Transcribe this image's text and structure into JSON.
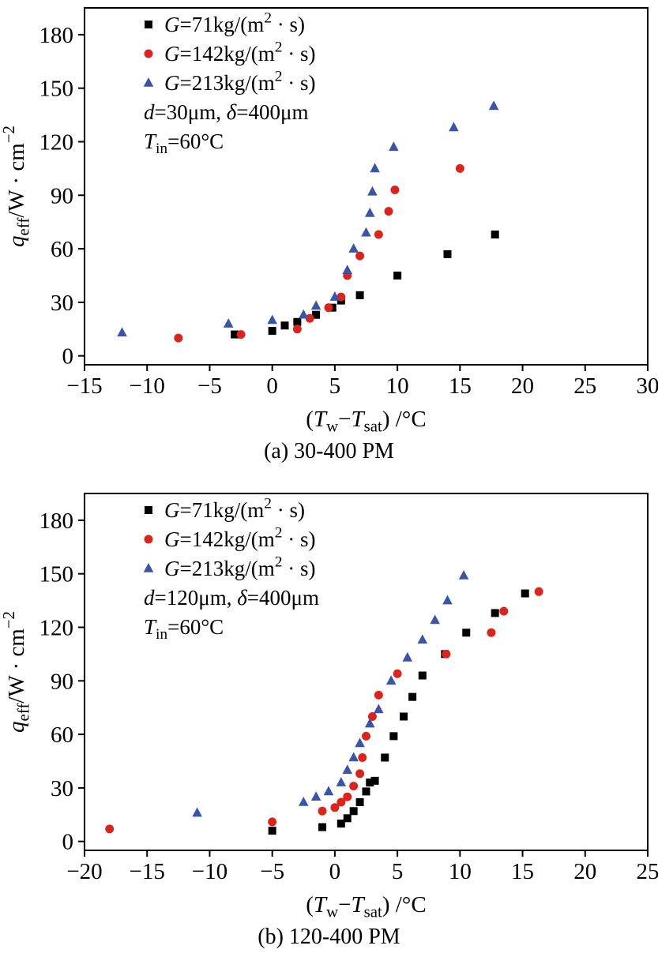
{
  "figure": {
    "description": "Two scatter plots of effective heat flux versus wall superheat for three mass fluxes",
    "accent_colors": {
      "black": "#000000",
      "red": "#d9251d",
      "blue": "#3a55a5"
    }
  },
  "chart_data": [
    {
      "id": "a",
      "type": "scatter",
      "caption": "(a) 30-400 PM",
      "xlim": [
        -15,
        30
      ],
      "ylim": [
        -5,
        195
      ],
      "xticks": [
        -15,
        -10,
        -5,
        0,
        5,
        10,
        15,
        20,
        25,
        30
      ],
      "yticks": [
        0,
        30,
        60,
        90,
        120,
        150,
        180
      ],
      "xlabel_text": "(Tw−Tsat) /°C",
      "ylabel_text": "qeff/W · cm−2",
      "xlabel_parts": [
        {
          "t": "("
        },
        {
          "t": "T",
          "i": true
        },
        {
          "t": "w",
          "sub": true
        },
        {
          "t": "−"
        },
        {
          "t": "T",
          "i": true
        },
        {
          "t": "sat",
          "sub": true
        },
        {
          "t": ") /°C"
        }
      ],
      "ylabel_parts": [
        {
          "t": "q",
          "i": true
        },
        {
          "t": "eff",
          "sub": true
        },
        {
          "t": "/W · cm"
        },
        {
          "t": "−2",
          "sup": true
        }
      ],
      "annotations": [
        {
          "text": "d=30μm, δ=400μm",
          "parts": [
            {
              "t": "d",
              "i": true
            },
            {
              "t": "=30μm, "
            },
            {
              "t": "δ",
              "i": true
            },
            {
              "t": "=400μm"
            }
          ]
        },
        {
          "text": "Tin=60°C",
          "parts": [
            {
              "t": "T",
              "i": true
            },
            {
              "t": "in",
              "sub": true
            },
            {
              "t": "=60°C"
            }
          ]
        }
      ],
      "legend_position": "top-left-inside",
      "grid": false,
      "series": [
        {
          "key": "g71",
          "marker": "square",
          "color": "#000000",
          "label_text": "G=71kg/(m² · s)",
          "label_parts": [
            {
              "t": "G",
              "i": true
            },
            {
              "t": "=71kg/(m"
            },
            {
              "t": "2",
              "sup": true
            },
            {
              "t": " · s)"
            }
          ],
          "points": [
            [
              -3,
              12
            ],
            [
              0,
              14
            ],
            [
              1,
              17
            ],
            [
              2,
              19
            ],
            [
              3.5,
              23
            ],
            [
              4.8,
              27
            ],
            [
              5.5,
              31
            ],
            [
              7,
              34
            ],
            [
              10,
              45
            ],
            [
              14,
              57
            ],
            [
              17.8,
              68
            ]
          ]
        },
        {
          "key": "g142",
          "marker": "circle",
          "color": "#d9251d",
          "label_text": "G=142kg/(m² · s)",
          "label_parts": [
            {
              "t": "G",
              "i": true
            },
            {
              "t": "=142kg/(m"
            },
            {
              "t": "2",
              "sup": true
            },
            {
              "t": " · s)"
            }
          ],
          "points": [
            [
              -7.5,
              10
            ],
            [
              -2.5,
              12
            ],
            [
              2,
              15
            ],
            [
              3,
              21
            ],
            [
              4.5,
              27
            ],
            [
              5.5,
              33
            ],
            [
              6,
              45
            ],
            [
              7,
              56
            ],
            [
              8.5,
              68
            ],
            [
              9.3,
              81
            ],
            [
              9.8,
              93
            ],
            [
              15,
              105
            ]
          ]
        },
        {
          "key": "g213",
          "marker": "triangle",
          "color": "#3a55a5",
          "label_text": "G=213kg/(m² · s)",
          "label_parts": [
            {
              "t": "G",
              "i": true
            },
            {
              "t": "=213kg/(m"
            },
            {
              "t": "2",
              "sup": true
            },
            {
              "t": " · s)"
            }
          ],
          "points": [
            [
              -12,
              13
            ],
            [
              -3.5,
              18
            ],
            [
              0,
              20
            ],
            [
              2.5,
              23
            ],
            [
              3.5,
              28
            ],
            [
              5,
              33
            ],
            [
              6,
              48
            ],
            [
              6.5,
              60
            ],
            [
              7.5,
              69
            ],
            [
              7.8,
              80
            ],
            [
              8,
              92
            ],
            [
              8.2,
              105
            ],
            [
              9.7,
              117
            ],
            [
              14.5,
              128
            ],
            [
              17.7,
              140
            ]
          ]
        }
      ]
    },
    {
      "id": "b",
      "type": "scatter",
      "caption": "(b) 120-400 PM",
      "xlim": [
        -20,
        25
      ],
      "ylim": [
        -5,
        195
      ],
      "xticks": [
        -20,
        -15,
        -10,
        -5,
        0,
        5,
        10,
        15,
        20,
        25
      ],
      "yticks": [
        0,
        30,
        60,
        90,
        120,
        150,
        180
      ],
      "xlabel_text": "(Tw−Tsat) /°C",
      "ylabel_text": "qeff/W · cm−2",
      "xlabel_parts": [
        {
          "t": "("
        },
        {
          "t": "T",
          "i": true
        },
        {
          "t": "w",
          "sub": true
        },
        {
          "t": "−"
        },
        {
          "t": "T",
          "i": true
        },
        {
          "t": "sat",
          "sub": true
        },
        {
          "t": ") /°C"
        }
      ],
      "ylabel_parts": [
        {
          "t": "q",
          "i": true
        },
        {
          "t": "eff",
          "sub": true
        },
        {
          "t": "/W · cm"
        },
        {
          "t": "−2",
          "sup": true
        }
      ],
      "annotations": [
        {
          "text": "d=120μm, δ=400μm",
          "parts": [
            {
              "t": "d",
              "i": true
            },
            {
              "t": "=120μm, "
            },
            {
              "t": "δ",
              "i": true
            },
            {
              "t": "=400μm"
            }
          ]
        },
        {
          "text": "Tin=60°C",
          "parts": [
            {
              "t": "T",
              "i": true
            },
            {
              "t": "in",
              "sub": true
            },
            {
              "t": "=60°C"
            }
          ]
        }
      ],
      "legend_position": "top-left-inside",
      "grid": false,
      "series": [
        {
          "key": "g71",
          "marker": "square",
          "color": "#000000",
          "label_text": "G=71kg/(m² · s)",
          "label_parts": [
            {
              "t": "G",
              "i": true
            },
            {
              "t": "=71kg/(m"
            },
            {
              "t": "2",
              "sup": true
            },
            {
              "t": " · s)"
            }
          ],
          "points": [
            [
              -5,
              6
            ],
            [
              -1,
              8
            ],
            [
              0.5,
              10
            ],
            [
              1,
              13
            ],
            [
              1.5,
              17
            ],
            [
              2,
              22
            ],
            [
              2.5,
              28
            ],
            [
              2.8,
              33
            ],
            [
              3.2,
              34
            ],
            [
              4,
              47
            ],
            [
              4.7,
              59
            ],
            [
              5.5,
              70
            ],
            [
              6.2,
              81
            ],
            [
              7,
              93
            ],
            [
              8.8,
              105
            ],
            [
              10.5,
              117
            ],
            [
              12.8,
              128
            ],
            [
              15.2,
              139
            ]
          ]
        },
        {
          "key": "g142",
          "marker": "circle",
          "color": "#d9251d",
          "label_text": "G=142kg/(m² · s)",
          "label_parts": [
            {
              "t": "G",
              "i": true
            },
            {
              "t": "=142kg/(m"
            },
            {
              "t": "2",
              "sup": true
            },
            {
              "t": " · s)"
            }
          ],
          "points": [
            [
              -18,
              7
            ],
            [
              -5,
              11
            ],
            [
              -1,
              17
            ],
            [
              0,
              19
            ],
            [
              0.5,
              22
            ],
            [
              1,
              25
            ],
            [
              1.5,
              31
            ],
            [
              2,
              38
            ],
            [
              2.2,
              47
            ],
            [
              2.5,
              59
            ],
            [
              3,
              70
            ],
            [
              3.5,
              82
            ],
            [
              5,
              94
            ],
            [
              8.9,
              105
            ],
            [
              12.5,
              117
            ],
            [
              13.5,
              129
            ],
            [
              16.3,
              140
            ]
          ]
        },
        {
          "key": "g213",
          "marker": "triangle",
          "color": "#3a55a5",
          "label_text": "G=213kg/(m² · s)",
          "label_parts": [
            {
              "t": "G",
              "i": true
            },
            {
              "t": "=213kg/(m"
            },
            {
              "t": "2",
              "sup": true
            },
            {
              "t": " · s)"
            }
          ],
          "points": [
            [
              -11,
              16
            ],
            [
              -2.5,
              22
            ],
            [
              -1.5,
              25
            ],
            [
              -0.5,
              28
            ],
            [
              0.5,
              33
            ],
            [
              1,
              40
            ],
            [
              1.5,
              47
            ],
            [
              2,
              55
            ],
            [
              2.8,
              66
            ],
            [
              3.5,
              74
            ],
            [
              4.5,
              90
            ],
            [
              5.8,
              103
            ],
            [
              7,
              113
            ],
            [
              8,
              124
            ],
            [
              9,
              135
            ],
            [
              10.3,
              149
            ]
          ]
        }
      ]
    }
  ]
}
